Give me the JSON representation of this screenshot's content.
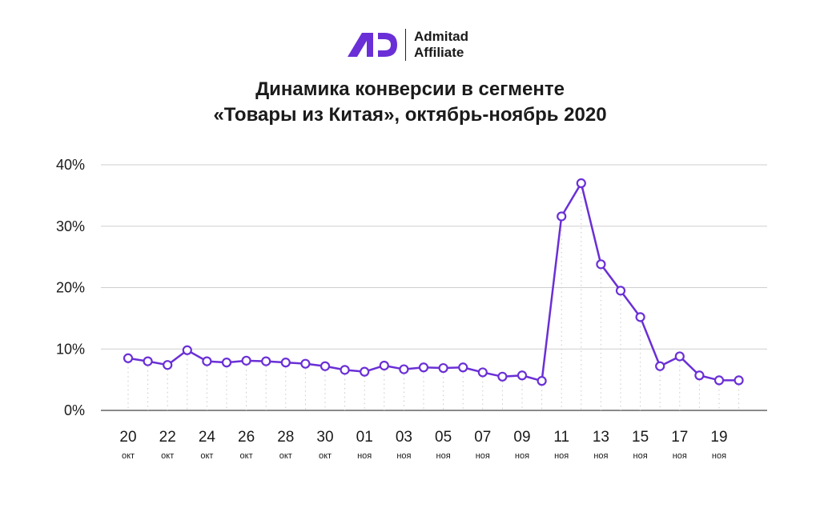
{
  "brand": {
    "line1": "Admitad",
    "line2": "Affiliate",
    "accent": "#6a2fd6"
  },
  "title": {
    "line1": "Динамика конверсии в сегменте",
    "line2": "«Товары из Китая», октябрь-ноябрь 2020"
  },
  "chart_data": {
    "type": "line",
    "title": "Динамика конверсии в сегменте «Товары из Китая», октябрь-ноябрь 2020",
    "xlabel": "",
    "ylabel": "",
    "ylim": [
      0,
      40
    ],
    "y_ticks": [
      "0%",
      "10%",
      "20%",
      "30%",
      "40%"
    ],
    "grid": true,
    "line_color": "#6a2fd6",
    "x": [
      "20 окт",
      "21 окт",
      "22 окт",
      "23 окт",
      "24 окт",
      "25 окт",
      "26 окт",
      "27 окт",
      "28 окт",
      "29 окт",
      "30 окт",
      "31 окт",
      "01 ноя",
      "02 ноя",
      "03 ноя",
      "04 ноя",
      "05 ноя",
      "06 ноя",
      "07 ноя",
      "08 ноя",
      "09 ноя",
      "10 ноя",
      "11 ноя",
      "12 ноя",
      "13 ноя",
      "14 ноя",
      "15 ноя",
      "16 ноя",
      "17 ноя",
      "18 ноя",
      "19 ноя",
      "20 ноя"
    ],
    "x_tick_labels": [
      {
        "day": "20",
        "month": "окт"
      },
      {
        "day": "22",
        "month": "окт"
      },
      {
        "day": "24",
        "month": "окт"
      },
      {
        "day": "26",
        "month": "окт"
      },
      {
        "day": "28",
        "month": "окт"
      },
      {
        "day": "30",
        "month": "окт"
      },
      {
        "day": "01",
        "month": "ноя"
      },
      {
        "day": "03",
        "month": "ноя"
      },
      {
        "day": "05",
        "month": "ноя"
      },
      {
        "day": "07",
        "month": "ноя"
      },
      {
        "day": "09",
        "month": "ноя"
      },
      {
        "day": "11",
        "month": "ноя"
      },
      {
        "day": "13",
        "month": "ноя"
      },
      {
        "day": "15",
        "month": "ноя"
      },
      {
        "day": "17",
        "month": "ноя"
      },
      {
        "day": "19",
        "month": "ноя"
      }
    ],
    "values": [
      8.5,
      8.0,
      7.4,
      9.8,
      8.0,
      7.8,
      8.1,
      8.0,
      7.8,
      7.6,
      7.2,
      6.6,
      6.3,
      7.3,
      6.7,
      7.0,
      6.9,
      7.0,
      6.2,
      5.5,
      5.7,
      4.8,
      31.6,
      37.0,
      23.8,
      19.5,
      15.2,
      7.2,
      8.8,
      5.7,
      4.9,
      4.9
    ]
  }
}
